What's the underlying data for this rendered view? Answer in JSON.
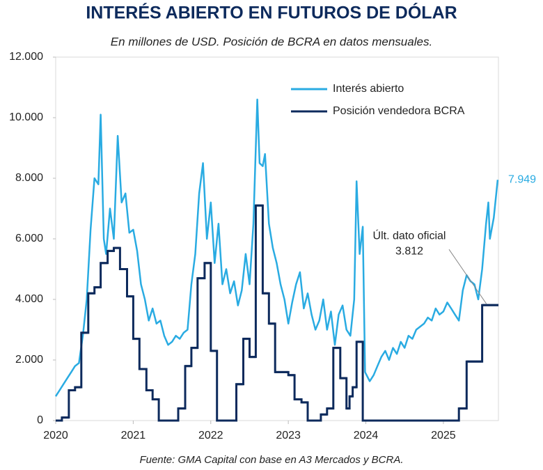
{
  "chart_data": {
    "type": "line",
    "title": "INTERÉS ABIERTO EN FUTUROS DE DÓLAR",
    "subtitle": "En millones de USD. Posición de BCRA en datos mensuales.",
    "source": "Fuente: GMA Capital con base en A3 Mercados y BCRA.",
    "xlim": [
      2020,
      2025.71
    ],
    "xticks": [
      2020,
      2021,
      2022,
      2023,
      2024,
      2025
    ],
    "ylim": [
      0,
      12000
    ],
    "yticks": [
      0,
      {
        "value": 2000,
        "label": "2.000"
      },
      {
        "value": 4000,
        "label": "4.000"
      },
      {
        "value": 6000,
        "label": "6.000"
      },
      {
        "value": 8000,
        "label": "8.000"
      },
      {
        "value": 10000,
        "label": "10.000"
      },
      {
        "value": 12000,
        "label": "12.000"
      }
    ],
    "grid": false,
    "legend": "top-right",
    "series": [
      {
        "name": "Interés abierto",
        "color": "#29abe2",
        "step": false,
        "x": [
          2020.0,
          2020.05,
          2020.1,
          2020.15,
          2020.2,
          2020.25,
          2020.3,
          2020.35,
          2020.4,
          2020.45,
          2020.5,
          2020.55,
          2020.58,
          2020.62,
          2020.65,
          2020.7,
          2020.75,
          2020.8,
          2020.85,
          2020.9,
          2020.95,
          2021.0,
          2021.05,
          2021.1,
          2021.15,
          2021.2,
          2021.25,
          2021.3,
          2021.35,
          2021.4,
          2021.45,
          2021.5,
          2021.55,
          2021.6,
          2021.65,
          2021.7,
          2021.75,
          2021.8,
          2021.85,
          2021.9,
          2021.95,
          2022.0,
          2022.05,
          2022.1,
          2022.15,
          2022.2,
          2022.25,
          2022.3,
          2022.35,
          2022.4,
          2022.45,
          2022.5,
          2022.55,
          2022.6,
          2022.63,
          2022.67,
          2022.7,
          2022.75,
          2022.8,
          2022.85,
          2022.9,
          2022.95,
          2023.0,
          2023.05,
          2023.1,
          2023.15,
          2023.2,
          2023.25,
          2023.3,
          2023.35,
          2023.4,
          2023.45,
          2023.5,
          2023.55,
          2023.6,
          2023.65,
          2023.7,
          2023.75,
          2023.8,
          2023.85,
          2023.88,
          2023.92,
          2023.96,
          2023.99,
          2024.05,
          2024.1,
          2024.15,
          2024.2,
          2024.25,
          2024.3,
          2024.35,
          2024.4,
          2024.45,
          2024.5,
          2024.55,
          2024.6,
          2024.65,
          2024.7,
          2024.75,
          2024.8,
          2024.85,
          2024.9,
          2024.95,
          2025.0,
          2025.05,
          2025.1,
          2025.15,
          2025.2,
          2025.25,
          2025.3,
          2025.35,
          2025.4,
          2025.45,
          2025.5,
          2025.55,
          2025.58,
          2025.6,
          2025.65,
          2025.7
        ],
        "values": [
          800,
          1000,
          1200,
          1400,
          1600,
          1800,
          1900,
          2800,
          4000,
          6300,
          8000,
          7800,
          10100,
          6000,
          5500,
          7000,
          6000,
          9400,
          7200,
          7500,
          6200,
          6300,
          5600,
          4500,
          4000,
          3300,
          3700,
          3200,
          3300,
          2800,
          2500,
          2600,
          2800,
          2700,
          2900,
          3000,
          4500,
          5500,
          7500,
          8500,
          6000,
          7200,
          5200,
          6500,
          4500,
          5000,
          4200,
          4600,
          3800,
          4300,
          5500,
          4500,
          6500,
          10600,
          8500,
          8400,
          8800,
          6500,
          5700,
          5200,
          4500,
          4000,
          3200,
          3900,
          4500,
          4900,
          3700,
          4200,
          3500,
          3000,
          3300,
          4000,
          3000,
          3600,
          2500,
          3500,
          3800,
          3000,
          2800,
          4000,
          7900,
          5500,
          6400,
          1600,
          1300,
          1500,
          1800,
          2100,
          2300,
          2000,
          2400,
          2200,
          2600,
          2400,
          2800,
          2700,
          3000,
          3100,
          3200,
          3400,
          3300,
          3700,
          3500,
          3600,
          3900,
          3700,
          3500,
          3300,
          4300,
          4800,
          4600,
          4500,
          4000,
          5000,
          6500,
          7200,
          6000,
          6700,
          7949
        ]
      },
      {
        "name": "Posición vendedora BCRA",
        "color": "#0d2a5c",
        "step": true,
        "x": [
          2020.0,
          2020.08,
          2020.17,
          2020.25,
          2020.33,
          2020.42,
          2020.5,
          2020.58,
          2020.67,
          2020.75,
          2020.83,
          2020.92,
          2021.0,
          2021.08,
          2021.17,
          2021.25,
          2021.33,
          2021.42,
          2021.5,
          2021.58,
          2021.67,
          2021.75,
          2021.83,
          2021.92,
          2022.0,
          2022.08,
          2022.17,
          2022.25,
          2022.33,
          2022.42,
          2022.5,
          2022.58,
          2022.67,
          2022.75,
          2022.83,
          2022.92,
          2023.0,
          2023.08,
          2023.17,
          2023.25,
          2023.33,
          2023.42,
          2023.5,
          2023.58,
          2023.67,
          2023.75,
          2023.79,
          2023.83,
          2023.88,
          2023.96,
          2024.5,
          2025.0,
          2025.2,
          2025.3,
          2025.42,
          2025.5
        ],
        "values": [
          0,
          100,
          1000,
          1100,
          2900,
          4200,
          4400,
          5200,
          5600,
          5700,
          5000,
          4100,
          2700,
          1700,
          1000,
          700,
          0,
          0,
          0,
          400,
          1800,
          2400,
          4700,
          5200,
          2300,
          0,
          0,
          0,
          1200,
          2700,
          2100,
          7100,
          4200,
          3200,
          1600,
          1600,
          1500,
          700,
          600,
          0,
          0,
          200,
          400,
          2400,
          1400,
          400,
          800,
          1100,
          2600,
          0,
          0,
          0,
          400,
          1950,
          1950,
          3812
        ]
      }
    ],
    "annotations": [
      {
        "text": "7.949",
        "value": 7949,
        "series": 0
      },
      {
        "text": "Últ. dato oficial",
        "label": "3.812",
        "value": 3812,
        "series": 1
      }
    ]
  }
}
